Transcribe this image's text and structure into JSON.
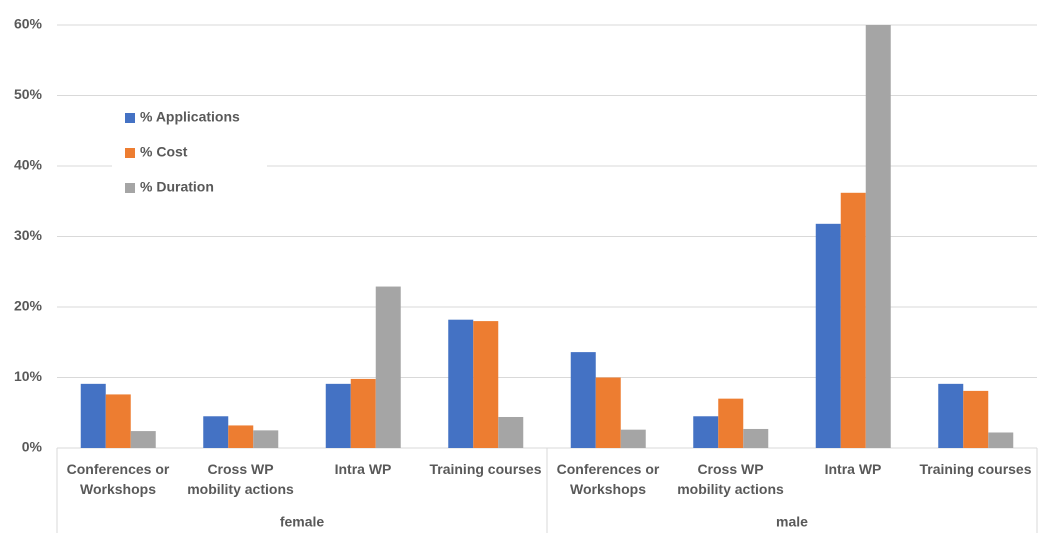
{
  "chart_data": {
    "type": "bar",
    "categories": [
      "Conferences or Workshops",
      "Cross WP mobility actions",
      "Intra WP",
      "Training courses",
      "Conferences or Workshops",
      "Cross WP mobility actions",
      "Intra WP",
      "Training courses"
    ],
    "group_labels": [
      "female",
      "male"
    ],
    "series": [
      {
        "name": "% Applications",
        "color": "#4472c4",
        "values": [
          9.1,
          4.5,
          9.1,
          18.2,
          13.6,
          4.5,
          31.8,
          9.1
        ]
      },
      {
        "name": "% Cost",
        "color": "#ed7d31",
        "values": [
          7.6,
          3.2,
          9.8,
          18.0,
          10.0,
          7.0,
          36.2,
          8.1
        ]
      },
      {
        "name": "% Duration",
        "color": "#a5a5a5",
        "values": [
          2.4,
          2.5,
          22.9,
          4.4,
          2.6,
          2.7,
          60,
          2.2
        ]
      }
    ],
    "ylim": [
      0,
      60
    ],
    "yticks": [
      {
        "value": 0,
        "label": "0%"
      },
      {
        "value": 10,
        "label": "10%"
      },
      {
        "value": 20,
        "label": "20%"
      },
      {
        "value": 30,
        "label": "30%"
      },
      {
        "value": 40,
        "label": "40%"
      },
      {
        "value": 50,
        "label": "50%"
      },
      {
        "value": 60,
        "label": "60%"
      }
    ],
    "grid": true,
    "legend": "upper-left"
  }
}
